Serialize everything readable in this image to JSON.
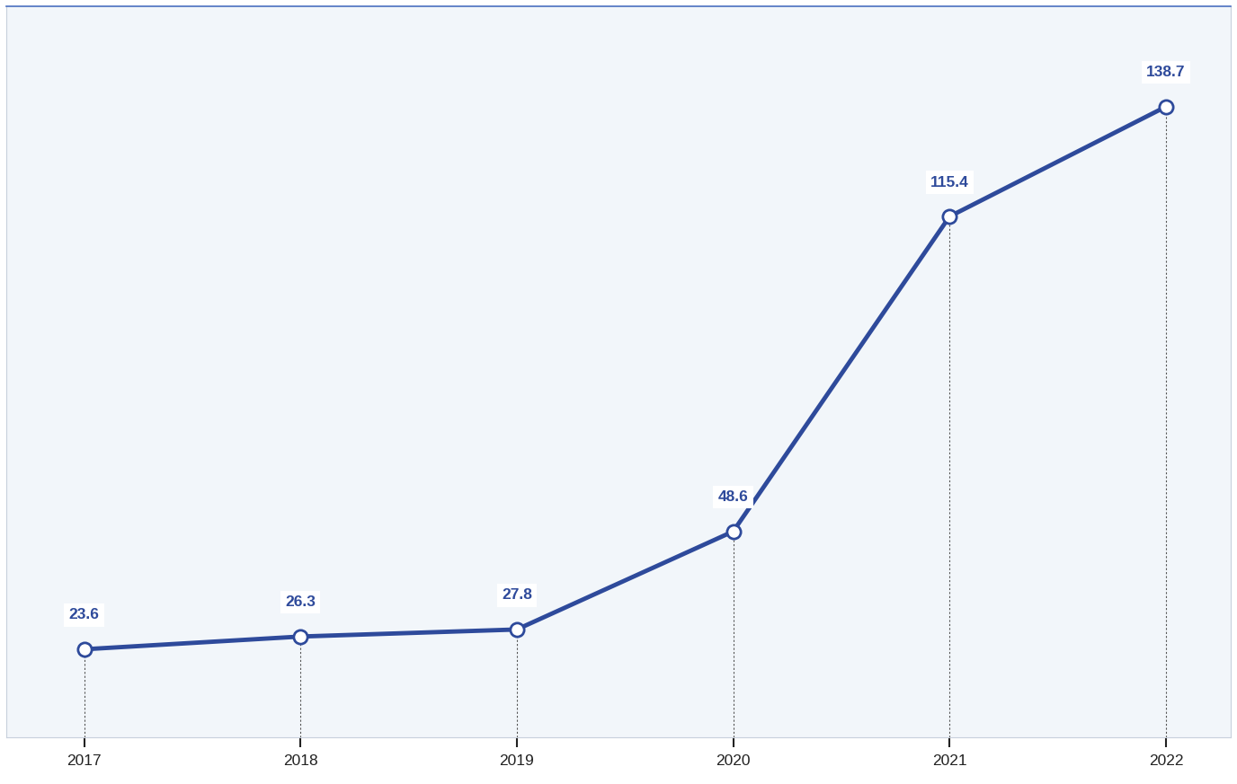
{
  "chart_data": {
    "type": "line",
    "x": [
      2017,
      2018,
      2019,
      2020,
      2021,
      2022
    ],
    "values": [
      23.6,
      26.3,
      27.8,
      48.6,
      115.4,
      138.7
    ],
    "color": "#2e4a9b",
    "marker": "o",
    "line_style": "solid",
    "xlim": [
      2016.64,
      2022.3
    ],
    "xticks": [
      2017,
      2018,
      2019,
      2020,
      2021,
      2022
    ],
    "ylim": [
      5,
      160
    ],
    "tick_labels": "x",
    "data_labels": true,
    "grid": false
  }
}
